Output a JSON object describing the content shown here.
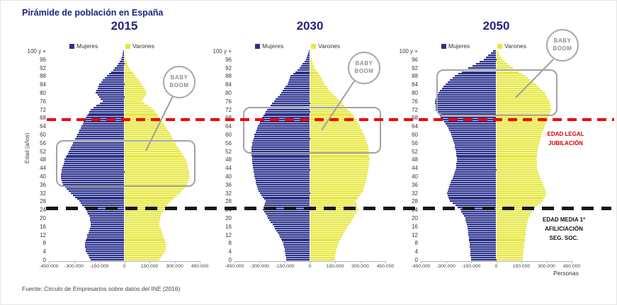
{
  "page": {
    "title": "Pirámide de población en España",
    "source": "Fuente: Circulo de Empresarios sobre datos del INE (2016)"
  },
  "legend": {
    "women": "Mujeres",
    "men": "Varones"
  },
  "axis": {
    "y_label": "Edad (años)",
    "x_unit": "Personas",
    "y_tick_labels": [
      "100 y +",
      "96",
      "92",
      "88",
      "84",
      "80",
      "76",
      "72",
      "68",
      "64",
      "60",
      "56",
      "52",
      "48",
      "44",
      "40",
      "36",
      "32",
      "28",
      "24",
      "20",
      "16",
      "12",
      "8",
      "4",
      "0"
    ],
    "x_tick_labels": [
      "-450.000",
      "-300.000",
      "-150.000",
      "0",
      "150.000",
      "300.000",
      "450.000"
    ]
  },
  "annotations": {
    "baby_boom": {
      "line1": "BABY",
      "line2": "BOOM"
    },
    "retirement_line": {
      "text_line1": "EDAD LEGAL",
      "text_line2": "JUBILACIÓN",
      "age": 67,
      "color": "#d60000"
    },
    "affiliation_line": {
      "text_line1": "EDAD MEDIA 1ª",
      "text_line2": "AFILICIACIÓN",
      "text_line3": "SEG. SOC.",
      "age": 24,
      "color": "#161616"
    }
  },
  "chart_data": [
    {
      "type": "bar",
      "variant": "population-pyramid",
      "title": "2015",
      "xlim": [
        -450000,
        450000
      ],
      "x_tick_step": 150000,
      "ages": [
        0,
        4,
        8,
        12,
        16,
        20,
        24,
        28,
        32,
        36,
        40,
        44,
        48,
        52,
        56,
        60,
        64,
        68,
        72,
        76,
        80,
        84,
        88,
        92,
        96,
        100
      ],
      "series": [
        {
          "name": "Mujeres",
          "side": "left",
          "color": "#2d3186",
          "values": [
            200000,
            230000,
            235000,
            220000,
            200000,
            205000,
            230000,
            270000,
            320000,
            365000,
            380000,
            370000,
            355000,
            330000,
            305000,
            280000,
            255000,
            230000,
            200000,
            130000,
            170000,
            150000,
            105000,
            55000,
            20000,
            5000
          ]
        },
        {
          "name": "Varones",
          "side": "right",
          "color": "#e7e83f",
          "values": [
            210000,
            245000,
            248000,
            232000,
            210000,
            212000,
            235000,
            275000,
            330000,
            375000,
            390000,
            380000,
            365000,
            335000,
            305000,
            275000,
            245000,
            210000,
            175000,
            105000,
            135000,
            105000,
            65000,
            28000,
            8000,
            2000
          ]
        }
      ],
      "baby_boom_age_range": [
        37,
        57
      ]
    },
    {
      "type": "bar",
      "variant": "population-pyramid",
      "title": "2030",
      "xlim": [
        -450000,
        450000
      ],
      "x_tick_step": 150000,
      "ages": [
        0,
        4,
        8,
        12,
        16,
        20,
        24,
        28,
        32,
        36,
        40,
        44,
        48,
        52,
        56,
        60,
        64,
        68,
        72,
        76,
        80,
        84,
        88,
        92,
        96,
        100
      ],
      "series": [
        {
          "name": "Mujeres",
          "side": "left",
          "color": "#2d3186",
          "values": [
            140000,
            148000,
            160000,
            185000,
            215000,
            250000,
            280000,
            265000,
            300000,
            320000,
            330000,
            340000,
            345000,
            350000,
            345000,
            330000,
            310000,
            285000,
            255000,
            215000,
            170000,
            135000,
            115000,
            60000,
            25000,
            6000
          ]
        },
        {
          "name": "Varones",
          "side": "right",
          "color": "#e7e83f",
          "values": [
            148000,
            156000,
            170000,
            195000,
            225000,
            258000,
            288000,
            272000,
            308000,
            328000,
            340000,
            350000,
            355000,
            352000,
            342000,
            322000,
            298000,
            268000,
            228000,
            178000,
            128000,
            88000,
            62000,
            28000,
            9000,
            2000
          ]
        }
      ],
      "baby_boom_age_range": [
        53,
        73
      ]
    },
    {
      "type": "bar",
      "variant": "population-pyramid",
      "title": "2050",
      "xlim": [
        -450000,
        450000
      ],
      "x_tick_step": 150000,
      "ages": [
        0,
        4,
        8,
        12,
        16,
        20,
        24,
        28,
        32,
        36,
        40,
        44,
        48,
        52,
        56,
        60,
        64,
        68,
        72,
        76,
        80,
        84,
        88,
        92,
        96,
        100
      ],
      "series": [
        {
          "name": "Mujeres",
          "side": "left",
          "color": "#2d3186",
          "values": [
            150000,
            155000,
            160000,
            165000,
            172000,
            185000,
            215000,
            275000,
            295000,
            278000,
            255000,
            240000,
            235000,
            240000,
            252000,
            268000,
            292000,
            330000,
            360000,
            365000,
            345000,
            302000,
            248000,
            165000,
            75000,
            20000
          ]
        },
        {
          "name": "Varones",
          "side": "right",
          "color": "#e7e83f",
          "values": [
            158000,
            163000,
            168000,
            174000,
            180000,
            192000,
            220000,
            278000,
            298000,
            282000,
            258000,
            245000,
            240000,
            246000,
            256000,
            270000,
            288000,
            312000,
            326000,
            318000,
            288000,
            238000,
            172000,
            98000,
            35000,
            7000
          ]
        }
      ],
      "baby_boom_age_range": [
        71,
        91
      ]
    }
  ]
}
